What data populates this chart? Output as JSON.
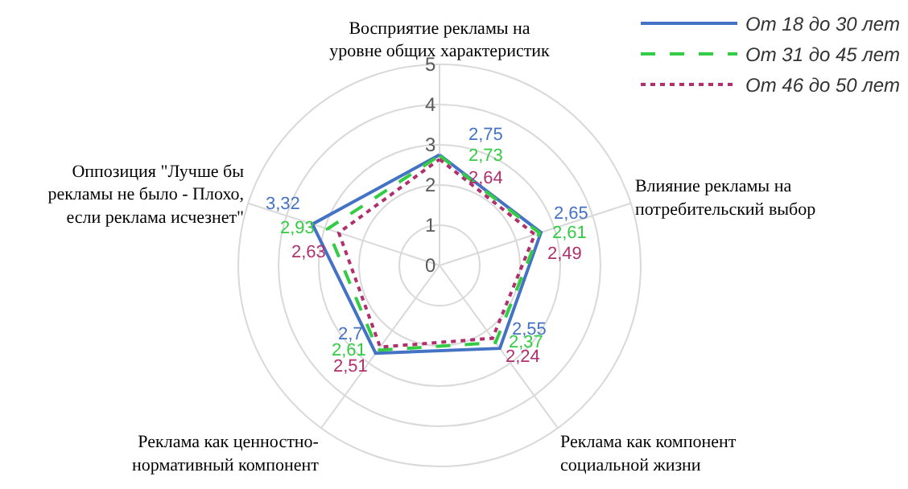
{
  "chart_data": {
    "type": "radar",
    "categories": [
      "Восприятие рекламы на уровне общих характеристик",
      "Влияние рекламы на потребительский выбор",
      "Реклама как компонент социальной жизни",
      "Реклама как ценностно-нормативный компонент",
      "Оппозиция \"Лучше бы рекламы не было - Плохо, если реклама исчезнет\""
    ],
    "ylim": [
      0,
      5
    ],
    "yticks": [
      0,
      1,
      2,
      3,
      4,
      5
    ],
    "grid": true,
    "legend": "top right",
    "marker": "none",
    "series": [
      {
        "name": "От 18 до 30 лет",
        "color": "#4472c4",
        "line_style": "solid",
        "values": [
          2.75,
          2.65,
          2.55,
          2.7,
          3.32
        ],
        "value_labels": [
          "2,75",
          "2,65",
          "2,55",
          "2,7",
          "3,32"
        ]
      },
      {
        "name": "От 31 до 45 лет",
        "color": "#33cc44",
        "line_style": "dashed",
        "values": [
          2.73,
          2.61,
          2.37,
          2.61,
          2.93
        ],
        "value_labels": [
          "2,73",
          "2,61",
          "2,37",
          "2,61",
          "2,93"
        ]
      },
      {
        "name": "От 46 до 50 лет",
        "color": "#b0306e",
        "line_style": "dotted",
        "values": [
          2.64,
          2.49,
          2.24,
          2.51,
          2.63
        ],
        "value_labels": [
          "2,64",
          "2,49",
          "2,24",
          "2,51",
          "2,63"
        ]
      }
    ]
  }
}
